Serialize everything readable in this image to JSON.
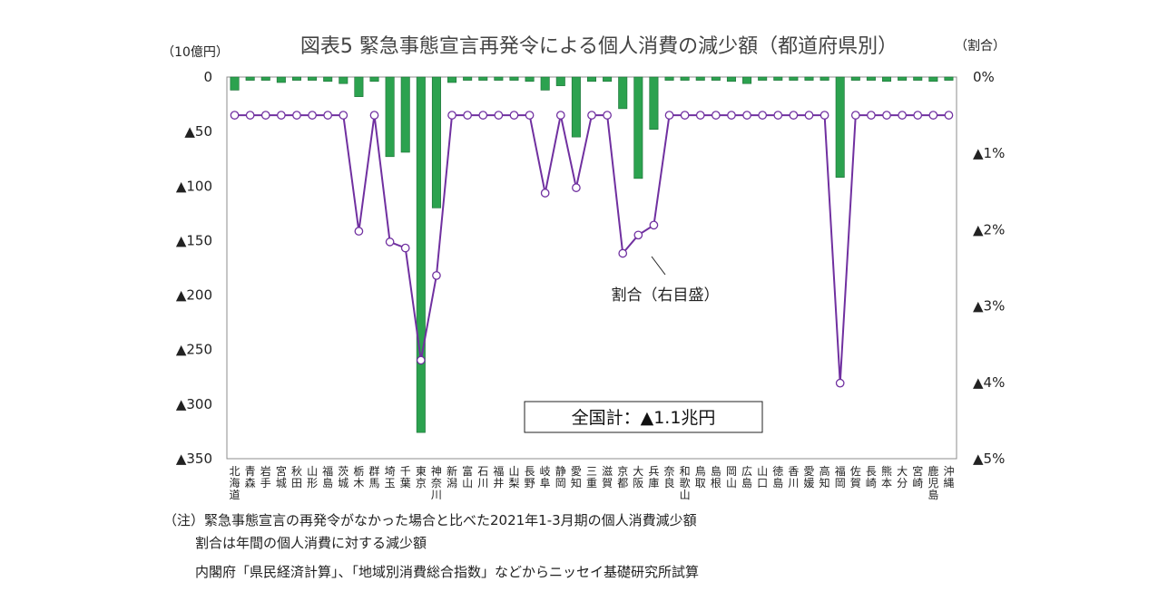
{
  "chart_data": {
    "type": "bar",
    "title": "図表5 緊急事態宣言再発令による個人消費の減少額（都道府県別）",
    "ylabel_left": "（10億円）",
    "ylabel_right": "（割合）",
    "ylim_left": [
      -350,
      0
    ],
    "ylim_right": [
      -0.05,
      0
    ],
    "left_ticks": [
      "0",
      "▲50",
      "▲100",
      "▲150",
      "▲200",
      "▲250",
      "▲300",
      "▲350"
    ],
    "right_ticks": [
      "0%",
      "▲1%",
      "▲2%",
      "▲3%",
      "▲4%",
      "▲5%"
    ],
    "grid": false,
    "categories": [
      "北海道",
      "青森",
      "岩手",
      "宮城",
      "秋田",
      "山形",
      "福島",
      "茨城",
      "栃木",
      "群馬",
      "埼玉",
      "千葉",
      "東京",
      "神奈川",
      "新潟",
      "富山",
      "石川",
      "福井",
      "山梨",
      "長野",
      "岐阜",
      "静岡",
      "愛知",
      "三重",
      "滋賀",
      "京都",
      "大阪",
      "兵庫",
      "奈良",
      "和歌山",
      "鳥取",
      "島根",
      "岡山",
      "広島",
      "山口",
      "徳島",
      "香川",
      "愛媛",
      "高知",
      "福岡",
      "佐賀",
      "長崎",
      "熊本",
      "大分",
      "宮崎",
      "鹿児島",
      "沖縄"
    ],
    "series": [
      {
        "type": "bar",
        "axis": "left",
        "color": "#2ca24f",
        "values": [
          -12,
          -3,
          -3,
          -5,
          -3,
          -3,
          -4,
          -6,
          -18,
          -4,
          -73,
          -69,
          -326,
          -120,
          -5,
          -3,
          -3,
          -3,
          -3,
          -4,
          -12,
          -8,
          -55,
          -4,
          -4,
          -29,
          -93,
          -48,
          -3,
          -3,
          -3,
          -3,
          -4,
          -6,
          -3,
          -3,
          -3,
          -3,
          -3,
          -92,
          -3,
          -3,
          -4,
          -3,
          -3,
          -4,
          -3
        ]
      },
      {
        "name": "割合（右目盛）",
        "type": "line",
        "axis": "right",
        "color": "#7030a0",
        "marker_fill": "#ffffff",
        "values": [
          -0.005,
          -0.005,
          -0.005,
          -0.005,
          -0.005,
          -0.005,
          -0.005,
          -0.005,
          -0.0202,
          -0.005,
          -0.0216,
          -0.0224,
          -0.0371,
          -0.026,
          -0.005,
          -0.005,
          -0.005,
          -0.005,
          -0.005,
          -0.005,
          -0.0152,
          -0.005,
          -0.0145,
          -0.005,
          -0.005,
          -0.0231,
          -0.0207,
          -0.0194,
          -0.005,
          -0.005,
          -0.005,
          -0.005,
          -0.005,
          -0.005,
          -0.005,
          -0.005,
          -0.005,
          -0.005,
          -0.005,
          -0.0401,
          -0.005,
          -0.005,
          -0.005,
          -0.005,
          -0.005,
          -0.005,
          -0.005
        ]
      }
    ],
    "annotations": {
      "series_label": "割合（右目盛）",
      "total_box": "全国計：▲1.1兆円"
    }
  },
  "notes": {
    "line1": "（注）緊急事態宣言の再発令がなかった場合と比べた2021年1-3月期の個人消費減少額",
    "line2": "割合は年間の個人消費に対する減少額",
    "line3": "内閣府「県民経済計算」、「地域別消費総合指数」などからニッセイ基礎研究所試算"
  }
}
